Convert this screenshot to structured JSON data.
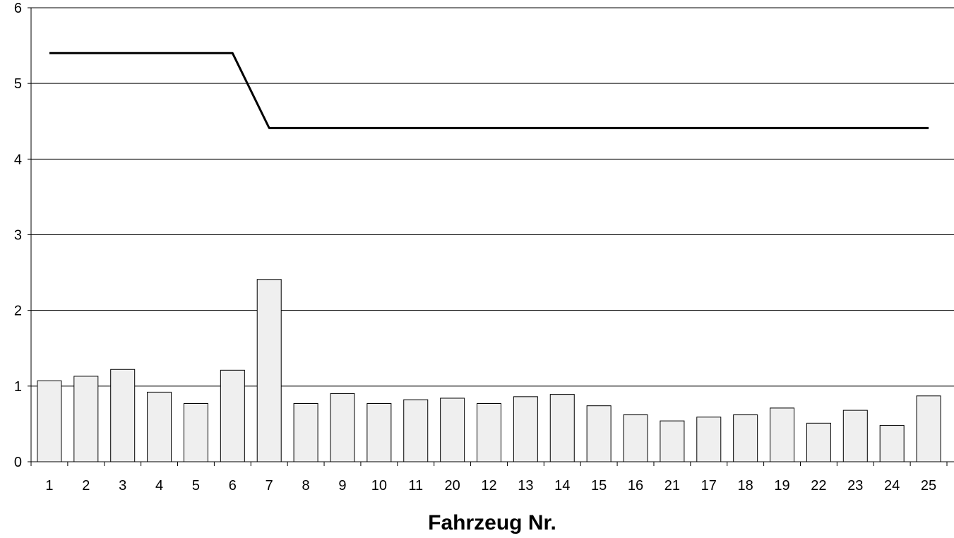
{
  "chart_data": {
    "type": "bar",
    "title": "",
    "xlabel": "Fahrzeug Nr.",
    "ylabel": "",
    "ylim": [
      0,
      6
    ],
    "yticks": [
      0,
      1,
      2,
      3,
      4,
      5,
      6
    ],
    "grid": true,
    "categories": [
      "1",
      "2",
      "3",
      "4",
      "5",
      "6",
      "7",
      "8",
      "9",
      "10",
      "11",
      "20",
      "12",
      "13",
      "14",
      "15",
      "16",
      "21",
      "17",
      "18",
      "19",
      "22",
      "23",
      "24",
      "25"
    ],
    "series": [
      {
        "type": "bar",
        "values": [
          1.07,
          1.13,
          1.22,
          0.92,
          0.77,
          1.21,
          2.41,
          0.77,
          0.9,
          0.77,
          0.82,
          0.84,
          0.77,
          0.86,
          0.89,
          0.74,
          0.62,
          0.54,
          0.59,
          0.62,
          0.71,
          0.51,
          0.68,
          0.48,
          0.87
        ],
        "color": "#efefef",
        "stroke": "#000000"
      },
      {
        "type": "line",
        "values": [
          5.4,
          5.4,
          5.4,
          5.4,
          5.4,
          5.4,
          4.41,
          4.41,
          4.41,
          4.41,
          4.41,
          4.41,
          4.41,
          4.41,
          4.41,
          4.41,
          4.41,
          4.41,
          4.41,
          4.41,
          4.41,
          4.41,
          4.41,
          4.41,
          4.41
        ],
        "color": "#000000"
      }
    ]
  }
}
